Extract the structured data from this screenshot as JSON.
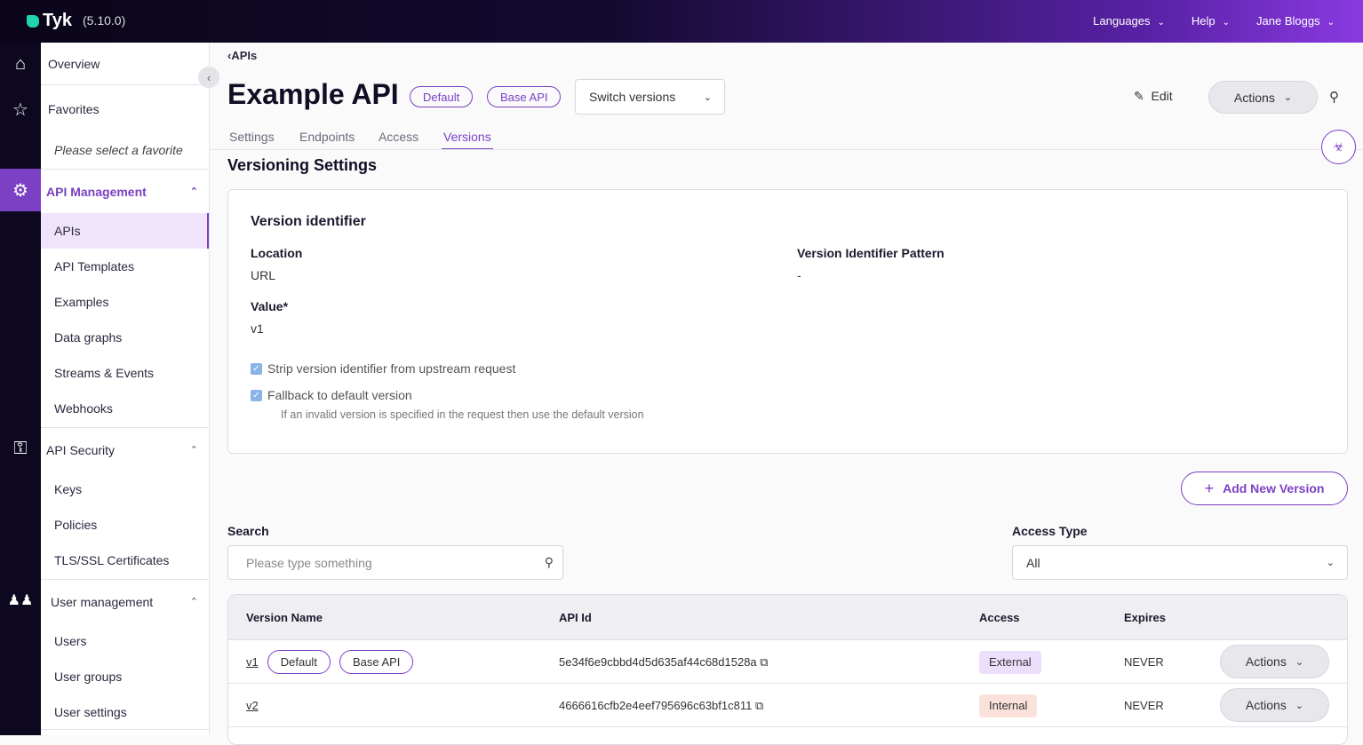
{
  "app": {
    "logo": "Tyk",
    "version": "(5.10.0)"
  },
  "topnav": [
    {
      "label": "Languages"
    },
    {
      "label": "Help"
    },
    {
      "label": "Jane Bloggs"
    }
  ],
  "sidebar": {
    "overview": "Overview",
    "favorites": "Favorites",
    "favorites_empty": "Please select a favorite",
    "sections": [
      {
        "label": "API Management",
        "items": [
          "APIs",
          "API Templates",
          "Examples",
          "Data graphs",
          "Streams & Events",
          "Webhooks"
        ]
      },
      {
        "label": "API Security",
        "items": [
          "Keys",
          "Policies",
          "TLS/SSL Certificates"
        ]
      },
      {
        "label": "User management",
        "items": [
          "Users",
          "User groups",
          "User settings"
        ]
      }
    ]
  },
  "breadcrumb": "APIs",
  "page": {
    "title": "Example API",
    "badges": [
      "Default",
      "Base API"
    ],
    "switch_versions": "Switch versions",
    "edit": "Edit",
    "actions": "Actions"
  },
  "tabs": [
    "Settings",
    "Endpoints",
    "Access",
    "Versions"
  ],
  "active_tab": "Versions",
  "section_title": "Versioning Settings",
  "version_identifier": {
    "title": "Version identifier",
    "location_label": "Location",
    "location_value": "URL",
    "pattern_label": "Version Identifier Pattern",
    "pattern_value": "-",
    "value_label": "Value*",
    "value": "v1",
    "strip_label": "Strip version identifier from upstream request",
    "strip_checked": true,
    "fallback_label": "Fallback to default version",
    "fallback_checked": true,
    "fallback_hint": "If an invalid version is specified in the request then use the default version"
  },
  "add_version": "Add New Version",
  "filters": {
    "search_label": "Search",
    "search_placeholder": "Please type something",
    "access_label": "Access Type",
    "access_value": "All"
  },
  "table": {
    "headers": [
      "Version Name",
      "API Id",
      "Access",
      "Expires"
    ],
    "rows": [
      {
        "name": "v1",
        "tags": [
          "Default",
          "Base API"
        ],
        "api_id": "5e34f6e9cbbd4d5d635af44c68d1528a",
        "access": "External",
        "expires": "NEVER",
        "actions": "Actions"
      },
      {
        "name": "v2",
        "tags": [],
        "api_id": "4666616cfb2e4eef795696c63bf1c811",
        "access": "Internal",
        "expires": "NEVER",
        "actions": "Actions"
      }
    ]
  },
  "colors": {
    "accent": "#7b40c4",
    "external_badge": "#ecdffb",
    "internal_badge": "#fbe1dc"
  }
}
